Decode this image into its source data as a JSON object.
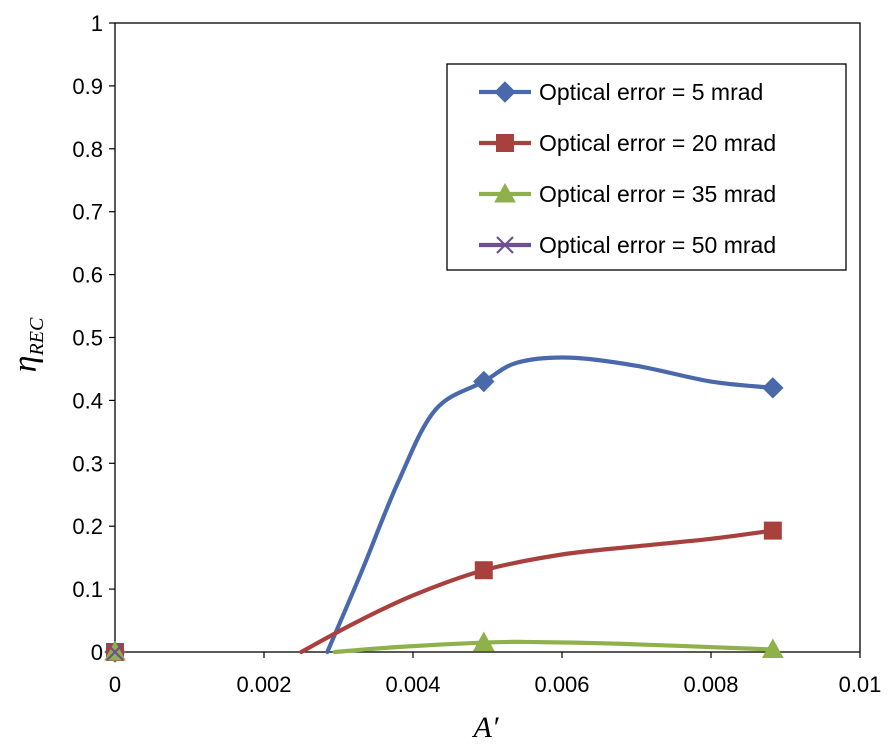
{
  "chart_data": {
    "type": "line",
    "xlabel": "A′",
    "ylabel": "η",
    "ylabel_sub": "REC",
    "xlim": [
      0,
      0.01
    ],
    "ylim": [
      0,
      1
    ],
    "x_ticks": [
      "0",
      "0.002",
      "0.004",
      "0.006",
      "0.008",
      "0.01"
    ],
    "y_ticks": [
      "0",
      "0.1",
      "0.2",
      "0.3",
      "0.4",
      "0.5",
      "0.6",
      "0.7",
      "0.8",
      "0.9",
      "1"
    ],
    "legend_position": "top-right",
    "series": [
      {
        "name": "Optical error = 5 mrad",
        "color": "#4a69ab",
        "marker": "diamond",
        "points": [
          [
            0,
            0
          ],
          [
            0.00495,
            0.43
          ],
          [
            0.00883,
            0.42
          ]
        ],
        "curve": [
          [
            0.00285,
            0
          ],
          [
            0.0033,
            0.125
          ],
          [
            0.0038,
            0.27
          ],
          [
            0.0043,
            0.385
          ],
          [
            0.00495,
            0.43
          ],
          [
            0.0054,
            0.46
          ],
          [
            0.0061,
            0.468
          ],
          [
            0.007,
            0.455
          ],
          [
            0.008,
            0.43
          ],
          [
            0.00883,
            0.42
          ]
        ]
      },
      {
        "name": "Optical error = 20 mrad",
        "color": "#a8403e",
        "marker": "square",
        "points": [
          [
            0,
            0
          ],
          [
            0.00495,
            0.13
          ],
          [
            0.00883,
            0.193
          ]
        ],
        "curve": [
          [
            0.0025,
            0
          ],
          [
            0.0032,
            0.045
          ],
          [
            0.004,
            0.09
          ],
          [
            0.00495,
            0.13
          ],
          [
            0.006,
            0.155
          ],
          [
            0.007,
            0.168
          ],
          [
            0.008,
            0.18
          ],
          [
            0.00883,
            0.193
          ]
        ]
      },
      {
        "name": "Optical error = 35 mrad",
        "color": "#8fb14c",
        "marker": "triangle",
        "points": [
          [
            0,
            0
          ],
          [
            0.00495,
            0.015
          ],
          [
            0.00883,
            0.004
          ]
        ],
        "curve": [
          [
            0.00295,
            0
          ],
          [
            0.0038,
            0.008
          ],
          [
            0.00495,
            0.015
          ],
          [
            0.0055,
            0.016
          ],
          [
            0.0065,
            0.014
          ],
          [
            0.0075,
            0.01
          ],
          [
            0.00883,
            0.004
          ]
        ]
      },
      {
        "name": "Optical error = 50 mrad",
        "color": "#6e4f8f",
        "marker": "x",
        "points": [
          [
            0,
            0
          ]
        ],
        "curve": []
      }
    ]
  }
}
